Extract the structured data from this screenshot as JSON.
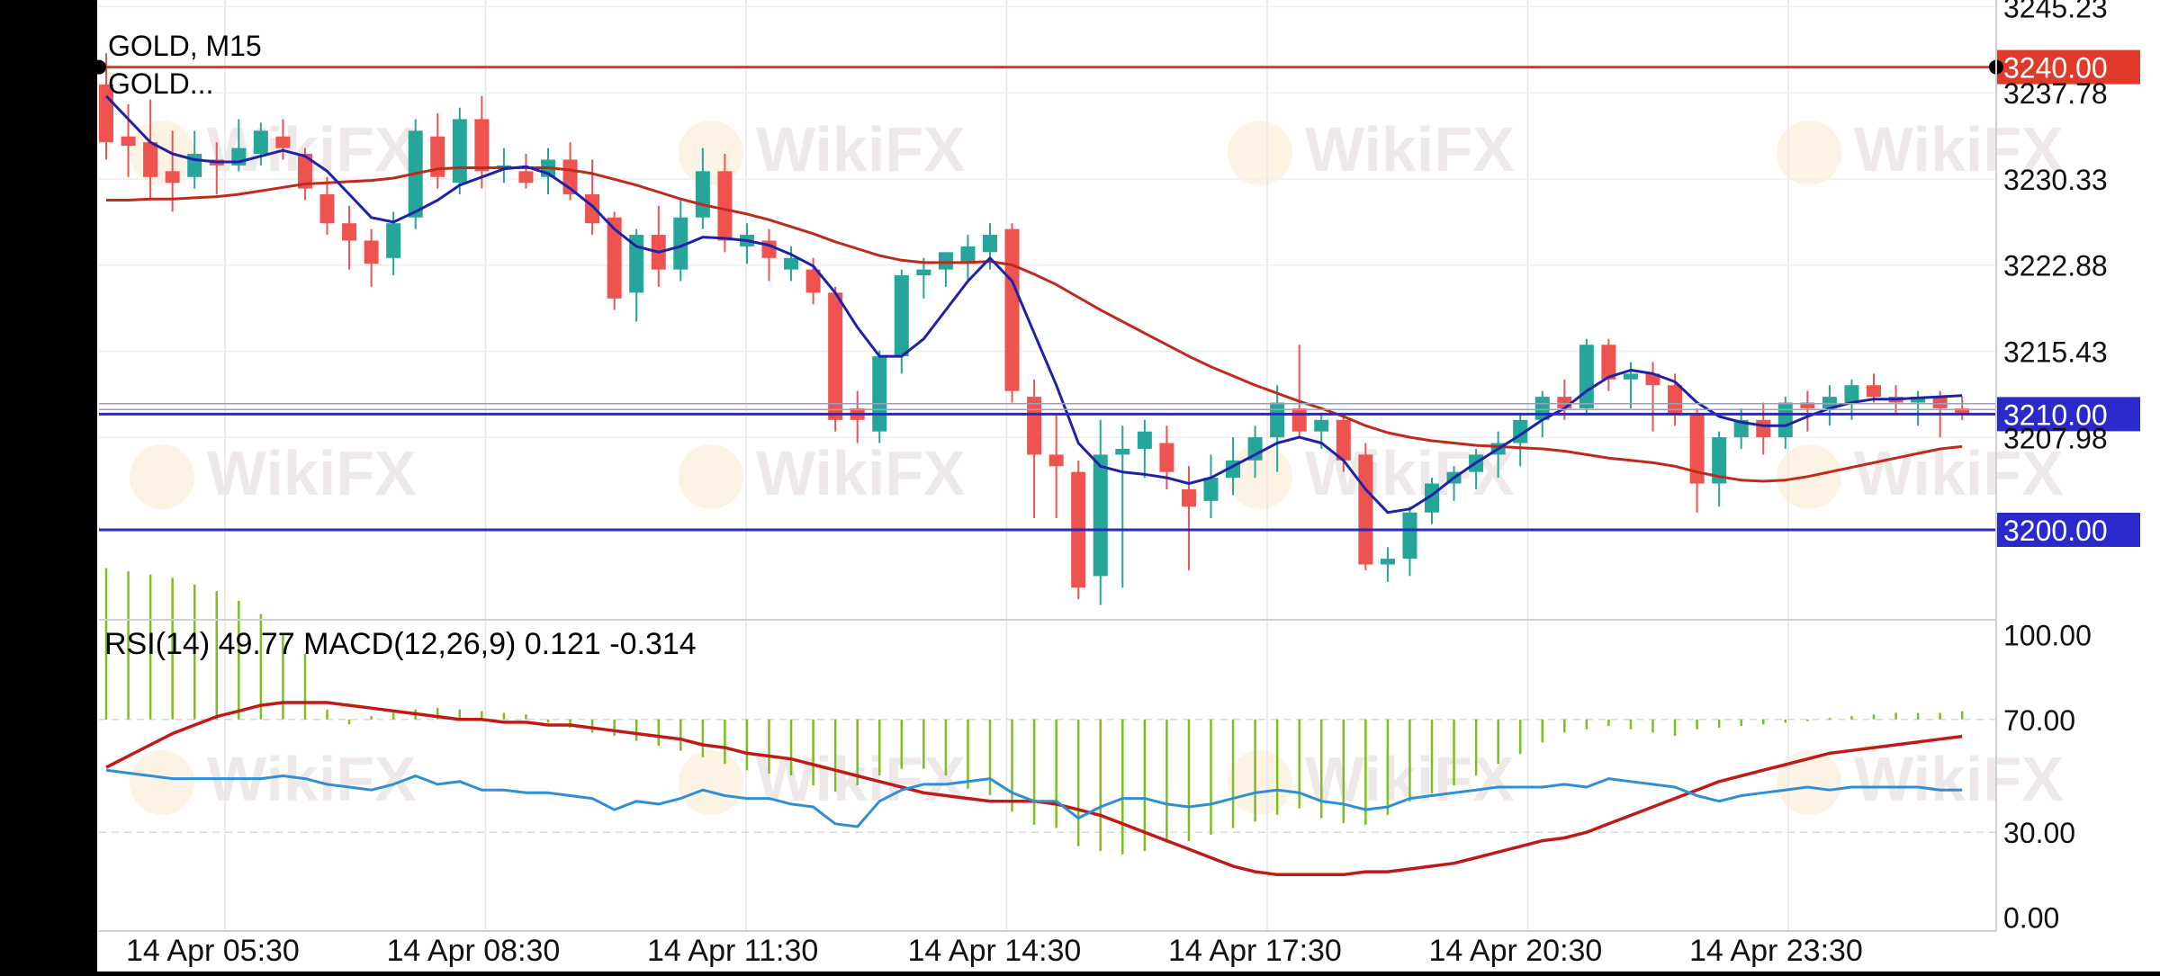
{
  "chart_data": {
    "type": "candlestick",
    "symbol_label": "GOLD, M15",
    "legend_label": "GOLD...",
    "x_labels": [
      "14 Apr 05:30",
      "14 Apr 08:30",
      "14 Apr 11:30",
      "14 Apr 14:30",
      "14 Apr 17:30",
      "14 Apr 20:30",
      "14 Apr 23:30"
    ],
    "price_ticks": [
      "3245.23",
      "3237.78",
      "3230.33",
      "3222.88",
      "3215.43",
      "3207.98"
    ],
    "ylim": [
      3192.3,
      3245.8
    ],
    "levels": [
      {
        "label": "3240.00",
        "value": 3240.0,
        "color": "#e03a2a"
      },
      {
        "label": "3210.00",
        "value": 3210.0,
        "color": "#2a2acc"
      },
      {
        "label": "3200.00",
        "value": 3200.0,
        "color": "#2a2acc"
      }
    ],
    "extra_lines": [
      3210.9,
      3210.4
    ],
    "candles": [
      [
        3238.5,
        3241.2,
        3232.0,
        3233.5
      ],
      [
        3234.0,
        3236.8,
        3230.5,
        3233.2
      ],
      [
        3233.5,
        3237.2,
        3228.5,
        3230.5
      ],
      [
        3231.0,
        3234.5,
        3227.5,
        3230.0
      ],
      [
        3230.5,
        3234.5,
        3229.5,
        3232.5
      ],
      [
        3232.0,
        3233.5,
        3229.0,
        3231.5
      ],
      [
        3231.5,
        3235.5,
        3231.0,
        3233.0
      ],
      [
        3232.5,
        3235.2,
        3231.5,
        3234.5
      ],
      [
        3234.0,
        3235.5,
        3232.0,
        3233.0
      ],
      [
        3232.5,
        3233.0,
        3228.5,
        3229.5
      ],
      [
        3229.0,
        3230.5,
        3225.5,
        3226.5
      ],
      [
        3226.5,
        3228.0,
        3222.5,
        3225.0
      ],
      [
        3225.0,
        3226.0,
        3221.0,
        3223.0
      ],
      [
        3223.5,
        3227.5,
        3222.0,
        3226.5
      ],
      [
        3227.0,
        3235.5,
        3226.0,
        3234.5
      ],
      [
        3234.0,
        3236.0,
        3229.5,
        3230.5
      ],
      [
        3230.0,
        3236.5,
        3229.0,
        3235.5
      ],
      [
        3235.5,
        3237.5,
        3229.5,
        3231.0
      ],
      [
        3231.5,
        3233.0,
        3230.0,
        3231.5
      ],
      [
        3231.0,
        3232.5,
        3229.5,
        3230.0
      ],
      [
        3230.5,
        3233.0,
        3229.0,
        3232.0
      ],
      [
        3232.0,
        3233.5,
        3228.5,
        3229.0
      ],
      [
        3229.0,
        3232.0,
        3225.5,
        3226.5
      ],
      [
        3227.0,
        3227.5,
        3219.0,
        3220.0
      ],
      [
        3220.5,
        3226.0,
        3218.0,
        3225.5
      ],
      [
        3225.5,
        3228.0,
        3221.0,
        3222.5
      ],
      [
        3222.5,
        3228.5,
        3221.5,
        3227.0
      ],
      [
        3227.0,
        3233.0,
        3226.0,
        3231.0
      ],
      [
        3231.0,
        3232.5,
        3224.0,
        3225.0
      ],
      [
        3224.5,
        3226.5,
        3223.0,
        3225.5
      ],
      [
        3225.0,
        3226.0,
        3221.5,
        3223.5
      ],
      [
        3222.5,
        3224.5,
        3221.5,
        3223.5
      ],
      [
        3222.5,
        3223.5,
        3219.5,
        3220.5
      ],
      [
        3220.5,
        3221.0,
        3208.5,
        3209.5
      ],
      [
        3210.5,
        3212.0,
        3207.5,
        3209.5
      ],
      [
        3208.5,
        3215.5,
        3207.5,
        3215.0
      ],
      [
        3215.0,
        3222.5,
        3213.5,
        3222.0
      ],
      [
        3222.0,
        3223.5,
        3220.0,
        3222.5
      ],
      [
        3222.5,
        3224.0,
        3221.0,
        3224.0
      ],
      [
        3223.0,
        3225.5,
        3221.5,
        3224.5
      ],
      [
        3224.0,
        3226.5,
        3222.5,
        3225.5
      ],
      [
        3226.0,
        3226.5,
        3211.0,
        3212.0
      ],
      [
        3211.5,
        3213.0,
        3201.0,
        3206.5
      ],
      [
        3206.5,
        3210.0,
        3201.0,
        3205.5
      ],
      [
        3205.0,
        3206.0,
        3194.0,
        3195.0
      ],
      [
        3196.0,
        3209.5,
        3193.5,
        3206.5
      ],
      [
        3206.5,
        3209.0,
        3195.0,
        3207.0
      ],
      [
        3207.0,
        3209.5,
        3204.5,
        3208.5
      ],
      [
        3207.5,
        3209.0,
        3203.5,
        3205.0
      ],
      [
        3203.5,
        3205.5,
        3196.5,
        3202.0
      ],
      [
        3202.5,
        3206.5,
        3201.0,
        3204.5
      ],
      [
        3204.5,
        3208.0,
        3203.0,
        3206.0
      ],
      [
        3206.0,
        3209.0,
        3204.5,
        3208.0
      ],
      [
        3208.0,
        3212.5,
        3205.0,
        3211.0
      ],
      [
        3210.5,
        3216.0,
        3208.0,
        3208.5
      ],
      [
        3208.5,
        3210.0,
        3207.0,
        3209.5
      ],
      [
        3209.5,
        3210.0,
        3205.0,
        3206.0
      ],
      [
        3206.5,
        3207.5,
        3196.5,
        3197.0
      ],
      [
        3197.0,
        3198.5,
        3195.5,
        3197.5
      ],
      [
        3197.5,
        3202.0,
        3196.0,
        3201.5
      ],
      [
        3201.5,
        3204.5,
        3200.5,
        3204.0
      ],
      [
        3204.0,
        3205.5,
        3202.5,
        3205.0
      ],
      [
        3205.0,
        3207.0,
        3203.5,
        3206.5
      ],
      [
        3206.5,
        3208.5,
        3204.5,
        3207.5
      ],
      [
        3207.5,
        3210.0,
        3205.5,
        3209.5
      ],
      [
        3209.5,
        3212.0,
        3208.0,
        3211.5
      ],
      [
        3211.5,
        3213.0,
        3209.5,
        3210.5
      ],
      [
        3210.5,
        3216.5,
        3210.0,
        3216.0
      ],
      [
        3216.0,
        3216.5,
        3212.0,
        3213.0
      ],
      [
        3213.0,
        3214.5,
        3210.5,
        3213.5
      ],
      [
        3213.5,
        3214.5,
        3208.5,
        3212.5
      ],
      [
        3212.5,
        3213.5,
        3209.0,
        3210.0
      ],
      [
        3210.0,
        3210.5,
        3201.5,
        3204.0
      ],
      [
        3204.0,
        3208.5,
        3202.0,
        3208.0
      ],
      [
        3208.0,
        3210.5,
        3207.0,
        3209.5
      ],
      [
        3209.5,
        3211.0,
        3206.5,
        3208.0
      ],
      [
        3208.0,
        3211.5,
        3207.0,
        3211.0
      ],
      [
        3211.0,
        3212.0,
        3208.5,
        3210.5
      ],
      [
        3210.5,
        3212.5,
        3209.0,
        3211.5
      ],
      [
        3211.0,
        3213.0,
        3209.5,
        3212.5
      ],
      [
        3212.5,
        3213.5,
        3211.0,
        3211.5
      ],
      [
        3211.5,
        3212.5,
        3210.0,
        3211.0
      ],
      [
        3211.0,
        3212.0,
        3209.0,
        3211.5
      ],
      [
        3211.5,
        3212.0,
        3208.0,
        3210.5
      ],
      [
        3210.5,
        3211.5,
        3209.5,
        3210.0
      ]
    ],
    "ma_fast": [
      3237.5,
      3235.5,
      3233.5,
      3232.5,
      3232.0,
      3231.8,
      3231.8,
      3232.3,
      3232.8,
      3232.3,
      3231.0,
      3229.0,
      3227.0,
      3226.6,
      3227.5,
      3228.5,
      3229.8,
      3230.5,
      3231.2,
      3231.4,
      3230.8,
      3229.5,
      3228.0,
      3226.0,
      3224.5,
      3224.0,
      3224.5,
      3225.3,
      3225.2,
      3225.0,
      3224.6,
      3223.8,
      3222.8,
      3220.5,
      3217.5,
      3215.0,
      3215.0,
      3216.5,
      3219.0,
      3221.5,
      3223.5,
      3221.5,
      3217.0,
      3212.5,
      3207.5,
      3205.5,
      3205.0,
      3204.8,
      3204.5,
      3204.0,
      3204.5,
      3205.5,
      3206.5,
      3207.5,
      3208.0,
      3207.5,
      3206.0,
      3203.5,
      3201.5,
      3201.8,
      3203.0,
      3204.5,
      3205.8,
      3207.0,
      3208.2,
      3209.5,
      3210.5,
      3212.0,
      3213.2,
      3213.8,
      3213.5,
      3212.8,
      3211.0,
      3209.8,
      3209.3,
      3209.0,
      3209.0,
      3209.8,
      3210.5,
      3211.0,
      3211.3,
      3211.3,
      3211.4,
      3211.5,
      3211.6
    ],
    "ma_slow": [
      3228.5,
      3228.5,
      3228.6,
      3228.6,
      3228.7,
      3228.8,
      3229.0,
      3229.3,
      3229.6,
      3229.9,
      3230.0,
      3230.1,
      3230.2,
      3230.4,
      3230.8,
      3231.2,
      3231.3,
      3231.3,
      3231.3,
      3231.3,
      3231.3,
      3231.1,
      3230.8,
      3230.3,
      3229.8,
      3229.2,
      3228.6,
      3228.1,
      3227.7,
      3227.3,
      3226.8,
      3226.2,
      3225.6,
      3224.9,
      3224.3,
      3223.7,
      3223.3,
      3223.1,
      3223.1,
      3223.1,
      3223.2,
      3222.9,
      3222.1,
      3221.2,
      3220.1,
      3219.0,
      3218.0,
      3217.0,
      3216.0,
      3215.0,
      3214.1,
      3213.3,
      3212.5,
      3211.8,
      3211.1,
      3210.5,
      3209.8,
      3209.0,
      3208.4,
      3208.0,
      3207.7,
      3207.5,
      3207.3,
      3207.2,
      3207.1,
      3207.0,
      3206.8,
      3206.5,
      3206.2,
      3206.0,
      3205.8,
      3205.5,
      3205.0,
      3204.6,
      3204.3,
      3204.2,
      3204.3,
      3204.6,
      3205.0,
      3205.4,
      3205.8,
      3206.2,
      3206.6,
      3207.0,
      3207.2
    ],
    "indicator_label": "RSI(14) 49.77 MACD(12,26,9) 0.121 -0.314",
    "indicator_ticks": [
      "100.00",
      "70.00",
      "30.00",
      "0.00"
    ],
    "indicator_ylim": [
      -5,
      105
    ],
    "rsi": [
      52,
      51,
      50,
      49,
      49,
      49,
      49,
      49,
      50,
      49,
      47,
      46,
      45,
      47,
      50,
      47,
      48,
      45,
      45,
      44,
      44,
      43,
      42,
      38,
      41,
      40,
      42,
      45,
      43,
      42,
      42,
      40,
      39,
      33,
      32,
      41,
      45,
      47,
      47,
      48,
      49,
      44,
      41,
      41,
      35,
      39,
      42,
      42,
      40,
      39,
      40,
      42,
      44,
      45,
      44,
      41,
      40,
      38,
      39,
      42,
      43,
      44,
      45,
      46,
      46,
      46,
      47,
      46,
      49,
      48,
      47,
      46,
      43,
      41,
      43,
      44,
      45,
      46,
      45,
      46,
      46,
      46,
      46,
      45,
      45
    ],
    "signal": [
      53,
      57,
      61,
      65,
      68,
      71,
      73,
      75,
      76,
      76,
      76,
      75,
      74,
      73,
      72,
      71,
      70,
      70,
      69,
      69,
      68,
      68,
      67,
      66,
      65,
      64,
      63,
      61,
      60,
      58,
      57,
      56,
      54,
      52,
      50,
      48,
      46,
      44,
      43,
      42,
      41,
      41,
      41,
      40,
      38,
      36,
      33,
      30,
      27,
      24,
      21,
      18,
      16,
      15,
      15,
      15,
      15,
      16,
      16,
      17,
      18,
      19,
      21,
      23,
      25,
      27,
      28,
      30,
      33,
      36,
      39,
      42,
      45,
      48,
      50,
      52,
      54,
      56,
      58,
      59,
      60,
      61,
      62,
      63,
      64
    ],
    "macd_hist": [
      92,
      90,
      88,
      86,
      82,
      78,
      72,
      64,
      52,
      40,
      6,
      -3,
      2,
      4,
      6,
      7,
      6,
      5,
      4,
      3,
      -2,
      -5,
      -8,
      -10,
      -13,
      -16,
      -19,
      -23,
      -27,
      -31,
      -33,
      -34,
      -40,
      -44,
      -40,
      -34,
      -30,
      -30,
      -34,
      -42,
      -46,
      -56,
      -64,
      -66,
      -77,
      -80,
      -82,
      -80,
      -75,
      -74,
      -70,
      -66,
      -62,
      -58,
      -54,
      -60,
      -63,
      -64,
      -58,
      -50,
      -45,
      -40,
      -34,
      -27,
      -21,
      -14,
      -8,
      -6,
      -4,
      -6,
      -8,
      -10,
      -6,
      -5,
      -4,
      -3,
      -2,
      -1,
      1,
      2,
      3,
      4,
      4,
      4,
      5
    ],
    "watermark": "WikiFX",
    "colors": {
      "bull": "#26a69a",
      "bear": "#ef5350",
      "ma_fast": "#1f22a8",
      "ma_slow": "#c02a1a",
      "rsi": "#2e8fd6",
      "signal": "#c01a14",
      "macd_hist": "#7cbf1e",
      "level_red": "#e03a2a",
      "level_blue": "#2a2acc"
    }
  }
}
